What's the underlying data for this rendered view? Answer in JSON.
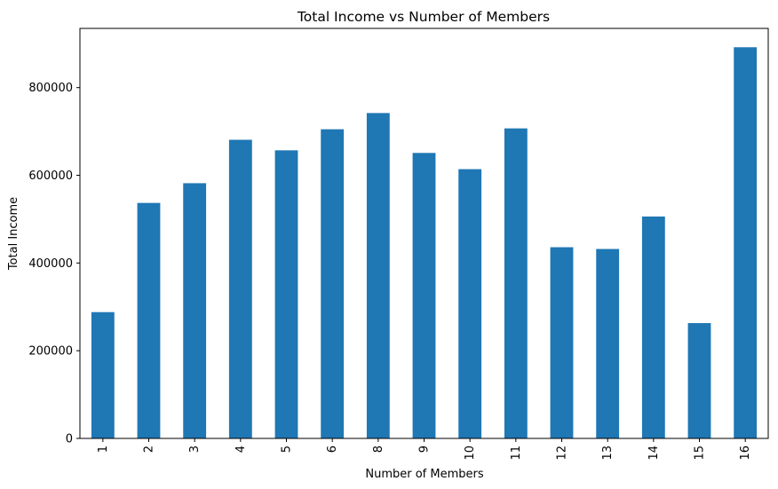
{
  "chart_data": {
    "type": "bar",
    "title": "Total Income vs Number of Members",
    "xlabel": "Number of Members",
    "ylabel": "Total Income",
    "categories": [
      "1",
      "2",
      "3",
      "4",
      "5",
      "6",
      "8",
      "9",
      "10",
      "11",
      "12",
      "13",
      "14",
      "15",
      "16"
    ],
    "values": [
      288000,
      537000,
      582000,
      681000,
      657000,
      705000,
      742000,
      651000,
      614000,
      707000,
      436000,
      432000,
      506000,
      263000,
      892000
    ],
    "ylim": [
      0,
      935000
    ],
    "yticks": [
      0,
      200000,
      400000,
      600000,
      800000
    ],
    "ytick_labels": [
      "0",
      "200000",
      "400000",
      "600000",
      "800000"
    ],
    "bar_color": "#1f77b4",
    "grid": false,
    "legend": "none"
  }
}
